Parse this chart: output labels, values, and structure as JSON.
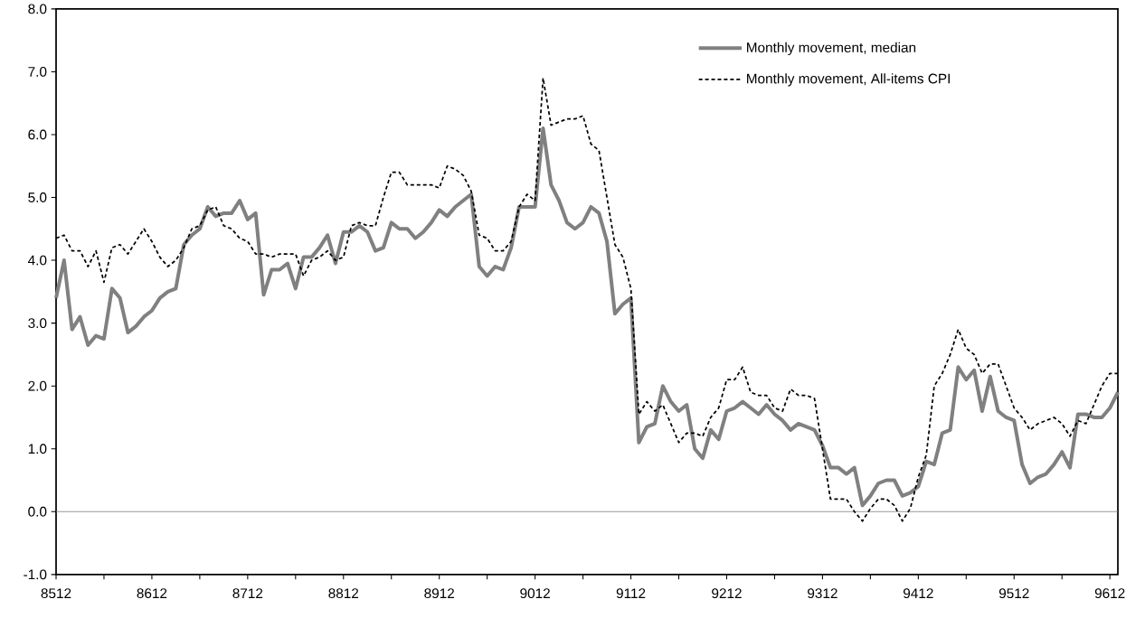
{
  "chart_data": {
    "type": "line",
    "categories": [
      "8512",
      null,
      null,
      null,
      null,
      null,
      null,
      null,
      null,
      null,
      null,
      null,
      "8612",
      null,
      null,
      null,
      null,
      null,
      null,
      null,
      null,
      null,
      null,
      null,
      "8712",
      null,
      null,
      null,
      null,
      null,
      null,
      null,
      null,
      null,
      null,
      null,
      "8812",
      null,
      null,
      null,
      null,
      null,
      null,
      null,
      null,
      null,
      null,
      null,
      "8912",
      null,
      null,
      null,
      null,
      null,
      null,
      null,
      null,
      null,
      null,
      null,
      "9012",
      null,
      null,
      null,
      null,
      null,
      null,
      null,
      null,
      null,
      null,
      null,
      "9112",
      null,
      null,
      null,
      null,
      null,
      null,
      null,
      null,
      null,
      null,
      null,
      "9212",
      null,
      null,
      null,
      null,
      null,
      null,
      null,
      null,
      null,
      null,
      null,
      "9312",
      null,
      null,
      null,
      null,
      null,
      null,
      null,
      null,
      null,
      null,
      null,
      "9412",
      null,
      null,
      null,
      null,
      null,
      null,
      null,
      null,
      null,
      null,
      null,
      "9512",
      null,
      null,
      null,
      null,
      null,
      null,
      null,
      null,
      null,
      null,
      null,
      "9612",
      null
    ],
    "series": [
      {
        "name": "Monthly movement, median",
        "color": "#808080",
        "line_style": "solid",
        "values": [
          3.4,
          4.0,
          2.9,
          3.1,
          2.65,
          2.8,
          2.75,
          3.55,
          3.4,
          2.85,
          2.95,
          3.1,
          3.2,
          3.4,
          3.5,
          3.55,
          4.25,
          4.4,
          4.5,
          4.85,
          4.7,
          4.75,
          4.75,
          4.95,
          4.65,
          4.75,
          3.45,
          3.85,
          3.85,
          3.95,
          3.55,
          4.05,
          4.05,
          4.2,
          4.4,
          3.95,
          4.45,
          4.45,
          4.55,
          4.45,
          4.15,
          4.2,
          4.6,
          4.5,
          4.5,
          4.35,
          4.45,
          4.6,
          4.8,
          4.7,
          4.85,
          4.95,
          5.05,
          3.9,
          3.75,
          3.9,
          3.85,
          4.2,
          4.85,
          4.85,
          4.85,
          6.1,
          5.2,
          4.95,
          4.6,
          4.5,
          4.6,
          4.85,
          4.75,
          4.3,
          3.15,
          3.3,
          3.4,
          1.1,
          1.35,
          1.4,
          2.0,
          1.75,
          1.6,
          1.7,
          1.0,
          0.85,
          1.3,
          1.15,
          1.6,
          1.65,
          1.75,
          1.65,
          1.55,
          1.7,
          1.55,
          1.45,
          1.3,
          1.4,
          1.35,
          1.3,
          1.05,
          0.7,
          0.7,
          0.6,
          0.7,
          0.1,
          0.25,
          0.45,
          0.5,
          0.5,
          0.25,
          0.3,
          0.4,
          0.8,
          0.75,
          1.25,
          1.3,
          2.3,
          2.1,
          2.25,
          1.6,
          2.15,
          1.6,
          1.5,
          1.45,
          0.75,
          0.45,
          0.55,
          0.6,
          0.75,
          0.95,
          0.7,
          1.55,
          1.55,
          1.5,
          1.5,
          1.65,
          1.9
        ]
      },
      {
        "name": "Monthly movement, All-items CPI",
        "color": "#000000",
        "line_style": "dashed",
        "values": [
          4.35,
          4.4,
          4.15,
          4.15,
          3.9,
          4.15,
          3.65,
          4.2,
          4.25,
          4.1,
          4.3,
          4.5,
          4.3,
          4.05,
          3.9,
          4.0,
          4.2,
          4.5,
          4.55,
          4.8,
          4.85,
          4.55,
          4.5,
          4.35,
          4.3,
          4.1,
          4.1,
          4.05,
          4.1,
          4.1,
          4.1,
          3.75,
          4.0,
          4.05,
          4.15,
          4.0,
          4.05,
          4.55,
          4.6,
          4.55,
          4.55,
          5.0,
          5.4,
          5.4,
          5.2,
          5.2,
          5.2,
          5.2,
          5.15,
          5.5,
          5.45,
          5.35,
          5.1,
          4.4,
          4.35,
          4.15,
          4.15,
          4.3,
          4.85,
          5.05,
          4.95,
          6.9,
          6.15,
          6.2,
          6.25,
          6.25,
          6.3,
          5.85,
          5.75,
          5.0,
          4.25,
          4.05,
          3.55,
          1.55,
          1.75,
          1.6,
          1.7,
          1.4,
          1.1,
          1.25,
          1.25,
          1.2,
          1.5,
          1.65,
          2.1,
          2.1,
          2.3,
          1.9,
          1.85,
          1.85,
          1.65,
          1.6,
          1.95,
          1.85,
          1.85,
          1.8,
          1.0,
          0.2,
          0.2,
          0.2,
          0.0,
          -0.15,
          0.05,
          0.2,
          0.2,
          0.1,
          -0.15,
          0.05,
          0.55,
          0.9,
          2.0,
          2.2,
          2.5,
          2.9,
          2.6,
          2.5,
          2.2,
          2.35,
          2.35,
          2.0,
          1.65,
          1.5,
          1.3,
          1.4,
          1.45,
          1.5,
          1.4,
          1.2,
          1.45,
          1.4,
          1.7,
          2.0,
          2.2,
          2.2
        ]
      }
    ],
    "ylim": [
      -1,
      8
    ],
    "yticks": [
      {
        "value": -1,
        "label": "-1.0"
      },
      {
        "value": 0,
        "label": "0.0"
      },
      {
        "value": 1,
        "label": "1.0"
      },
      {
        "value": 2,
        "label": "2.0"
      },
      {
        "value": 3,
        "label": "3.0"
      },
      {
        "value": 4,
        "label": "4.0"
      },
      {
        "value": 5,
        "label": "5.0"
      },
      {
        "value": 6,
        "label": "6.0"
      },
      {
        "value": 7,
        "label": "7.0"
      },
      {
        "value": 8,
        "label": "8.0"
      }
    ],
    "ref_lines": [
      {
        "axis": "y",
        "value": 0,
        "color": "#808080"
      }
    ],
    "grid": false,
    "legend": "top right"
  }
}
